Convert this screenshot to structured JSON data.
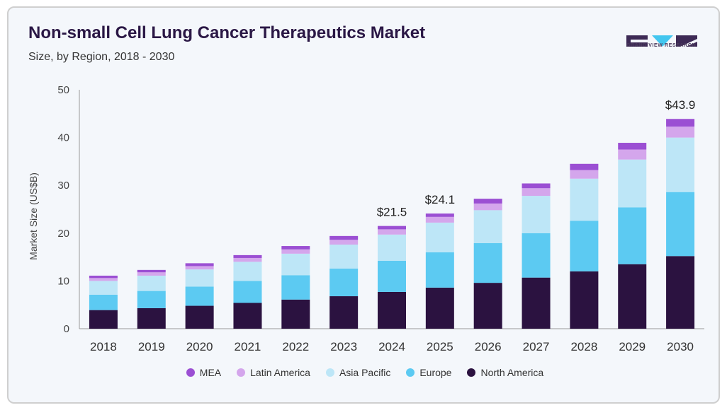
{
  "header": {
    "title": "Non-small Cell Lung Cancer Therapeutics Market",
    "subtitle": "Size, by Region, 2018 - 2030",
    "logo_text": "GRAND VIEW RESEARCH"
  },
  "colors": {
    "MEA": "#9b4fd3",
    "Latin America": "#d4a6ec",
    "Asia Pacific": "#bde6f7",
    "Europe": "#5ccaf2",
    "North America": "#2b1240",
    "logo_dark": "#3d2a55",
    "logo_accent": "#42c6ef"
  },
  "chart_data": {
    "type": "bar",
    "stacked": true,
    "categories": [
      "2018",
      "2019",
      "2020",
      "2021",
      "2022",
      "2023",
      "2024",
      "2025",
      "2026",
      "2027",
      "2028",
      "2029",
      "2030"
    ],
    "series": [
      {
        "name": "North America",
        "values": [
          3.9,
          4.3,
          4.8,
          5.4,
          6.1,
          6.8,
          7.7,
          8.6,
          9.6,
          10.7,
          12.0,
          13.5,
          15.2
        ]
      },
      {
        "name": "Europe",
        "values": [
          3.2,
          3.6,
          4.0,
          4.6,
          5.1,
          5.8,
          6.5,
          7.4,
          8.3,
          9.3,
          10.6,
          11.9,
          13.4
        ]
      },
      {
        "name": "Asia Pacific",
        "values": [
          2.9,
          3.2,
          3.6,
          4.0,
          4.5,
          5.0,
          5.5,
          6.2,
          6.9,
          7.8,
          8.8,
          10.0,
          11.4
        ]
      },
      {
        "name": "Latin America",
        "values": [
          0.6,
          0.7,
          0.7,
          0.8,
          0.9,
          1.0,
          1.1,
          1.2,
          1.4,
          1.6,
          1.8,
          2.1,
          2.3
        ]
      },
      {
        "name": "MEA",
        "values": [
          0.5,
          0.5,
          0.6,
          0.6,
          0.7,
          0.8,
          0.7,
          0.7,
          1.0,
          1.0,
          1.3,
          1.4,
          1.6
        ]
      }
    ],
    "total_labels": {
      "2024": "$21.5",
      "2025": "$24.1",
      "2030": "$43.9"
    },
    "ylabel": "Market Size (US$B)",
    "xlabel": "",
    "ylim": [
      0,
      50
    ],
    "yticks": [
      0,
      10,
      20,
      30,
      40,
      50
    ],
    "grid": false,
    "legend_position": "bottom",
    "legend_order": [
      "MEA",
      "Latin America",
      "Asia Pacific",
      "Europe",
      "North America"
    ]
  }
}
